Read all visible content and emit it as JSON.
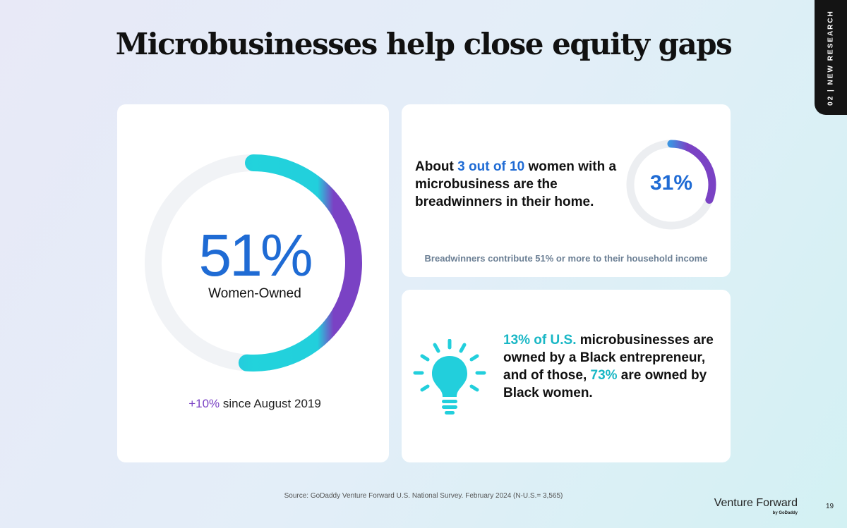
{
  "title": "Microbusinesses help close equity gaps",
  "section_tab": "02 | NEW RESEARCH",
  "women_owned": {
    "percent": "51%",
    "percent_value": 51,
    "label": "Women-Owned",
    "change_highlight": "+10%",
    "change_text": " since August 2019"
  },
  "breadwinners": {
    "text_before": "About ",
    "text_highlight": "3 out of 10",
    "text_after": " women with a microbusiness are the breadwinners in their home.",
    "percent": "31%",
    "percent_value": 31,
    "note": "Breadwinners contribute 51% or more to their household income"
  },
  "black_owned": {
    "highlight_1": "13% of U.S.",
    "text_1": " microbusinesses are owned by a Black entrepreneur, and of those, ",
    "highlight_2": "73%",
    "text_2": " are owned by Black women.",
    "icon": "lightbulb-icon"
  },
  "source": "Source: GoDaddy Venture Forward U.S. National Survey. February 2024 (N-U.S.= 3,565)",
  "brand": {
    "name": "Venture Forward",
    "sub": "by GoDaddy"
  },
  "page_number": "19",
  "colors": {
    "blue": "#1f6bd4",
    "teal": "#19b7c5",
    "purple": "#7a42c4",
    "track": "#f1f3f6"
  }
}
